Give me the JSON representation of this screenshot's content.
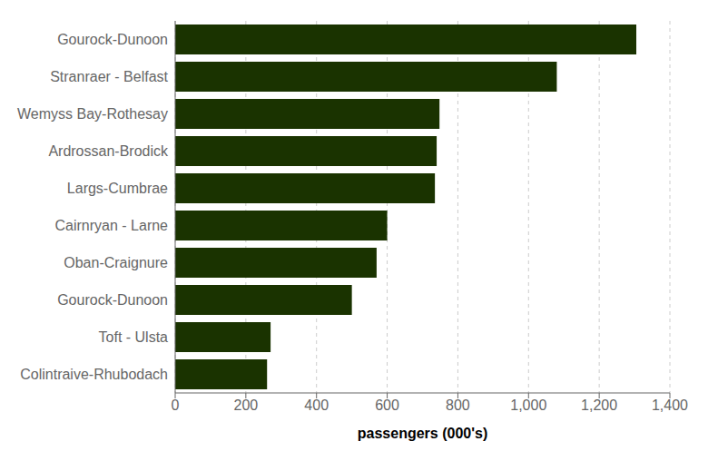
{
  "chart_data": {
    "type": "bar",
    "orientation": "horizontal",
    "categories": [
      "Colintraive-Rhubodach",
      "Toft - Ulsta",
      "Gourock-Dunoon",
      "Oban-Craignure",
      "Cairnryan - Larne",
      "Largs-Cumbrae",
      "Ardrossan-Brodick",
      "Wemyss Bay-Rothesay",
      "Stranraer - Belfast",
      "Gourock-Dunoon"
    ],
    "values": [
      260,
      270,
      500,
      570,
      600,
      735,
      740,
      748,
      1080,
      1305
    ],
    "color": "#1a3300",
    "xlabel": "passengers (000's)",
    "xlim": [
      0,
      1400
    ],
    "xticks": [
      0,
      200,
      400,
      600,
      800,
      {
        "value": 1000,
        "label": "1,000"
      },
      {
        "value": 1200,
        "label": "1,200"
      },
      {
        "value": 1400,
        "label": "1,400"
      }
    ],
    "grid": true
  }
}
